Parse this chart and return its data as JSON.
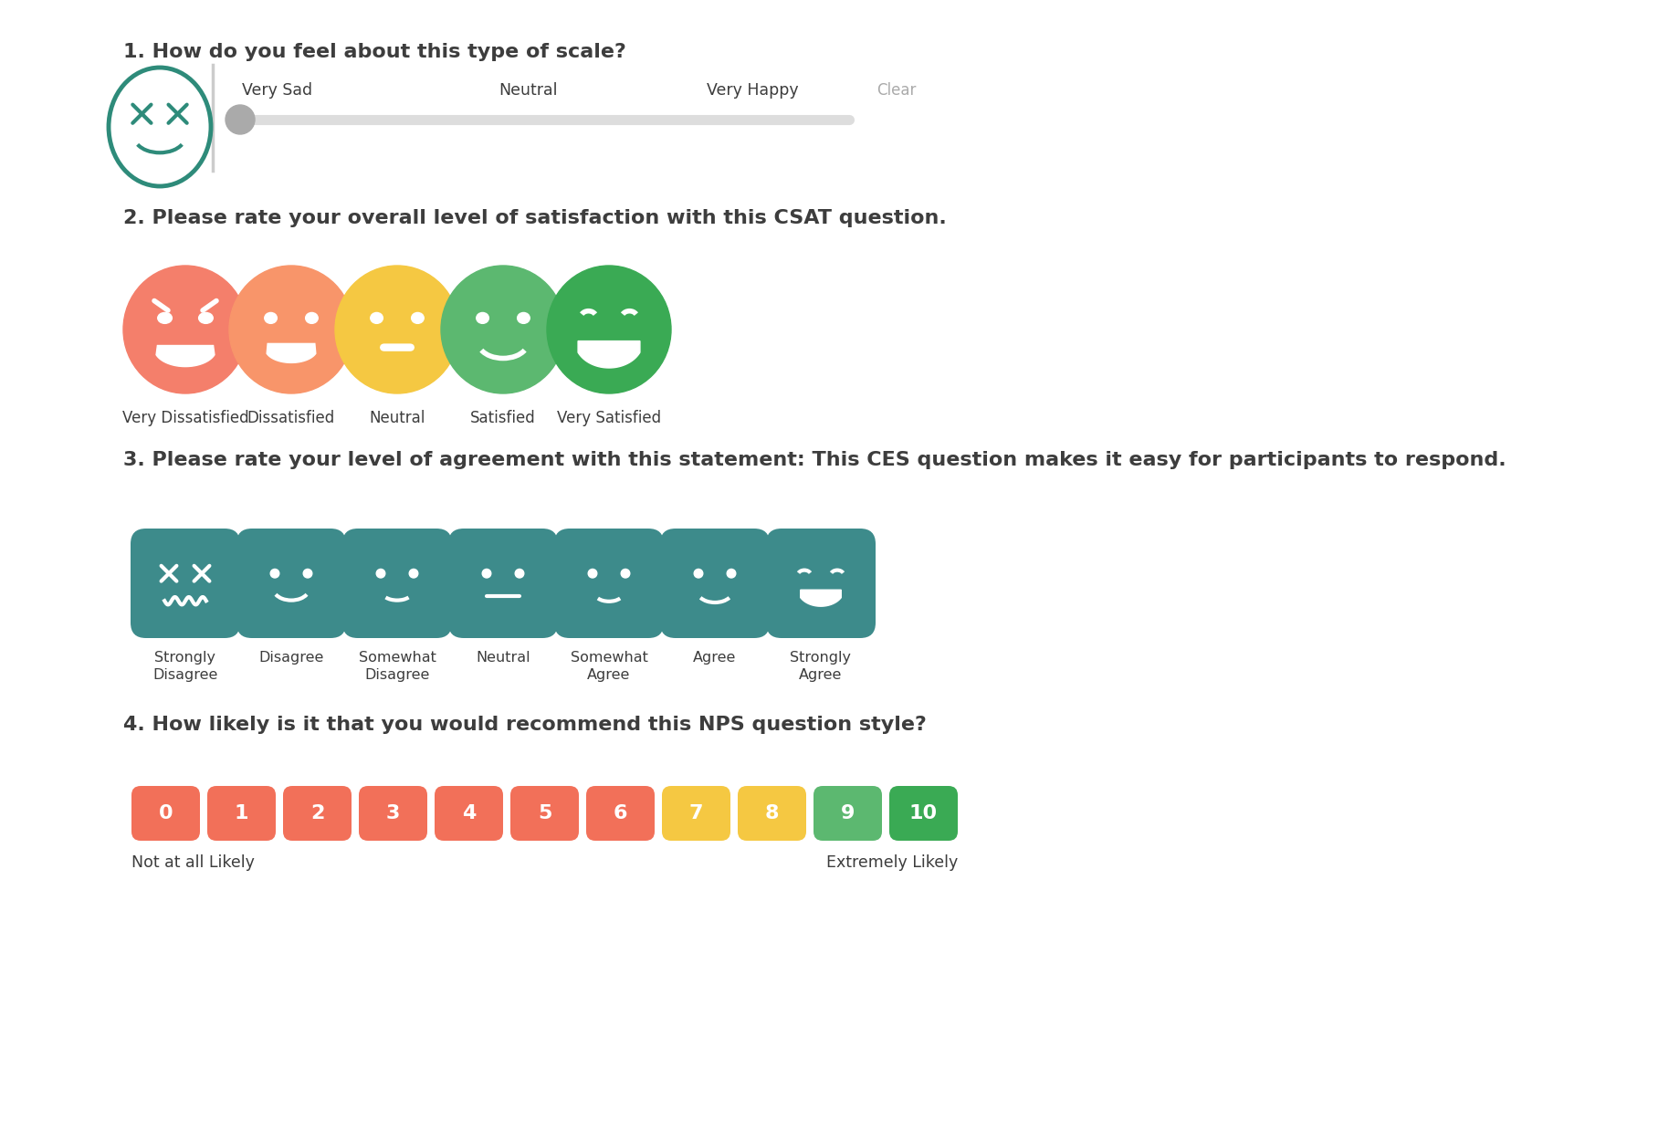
{
  "bg_color": "#ffffff",
  "text_color": "#3d3d3d",
  "q1_title": "1. How do you feel about this type of scale?",
  "q2_title": "2. Please rate your overall level of satisfaction with this CSAT question.",
  "q3_title": "3. Please rate your level of agreement with this statement: This CES question makes it easy for participants to respond.",
  "q4_title": "4. How likely is it that you would recommend this NPS question style?",
  "slider_labels": [
    "Very Sad",
    "Neutral",
    "Very Happy"
  ],
  "csat_labels": [
    "Very Dissatisfied",
    "Dissatisfied",
    "Neutral",
    "Satisfied",
    "Very Satisfied"
  ],
  "csat_colors": [
    "#f47f6b",
    "#f8956a",
    "#f5c842",
    "#5cb870",
    "#3aaa54"
  ],
  "ces_labels": [
    "Strongly\nDisagree",
    "Disagree",
    "Somewhat\nDisagree",
    "Neutral",
    "Somewhat\nAgree",
    "Agree",
    "Strongly\nAgree"
  ],
  "ces_color": "#3d8b8b",
  "nps_colors_0_6": "#f27059",
  "nps_color_7": "#f5c842",
  "nps_color_8": "#f5c842",
  "nps_color_9": "#5cb870",
  "nps_color_10": "#3aaa54",
  "nps_labels": [
    "Not at all Likely",
    "Extremely Likely"
  ],
  "teal_face": "#2e8b7a",
  "clear_text": "Clear"
}
